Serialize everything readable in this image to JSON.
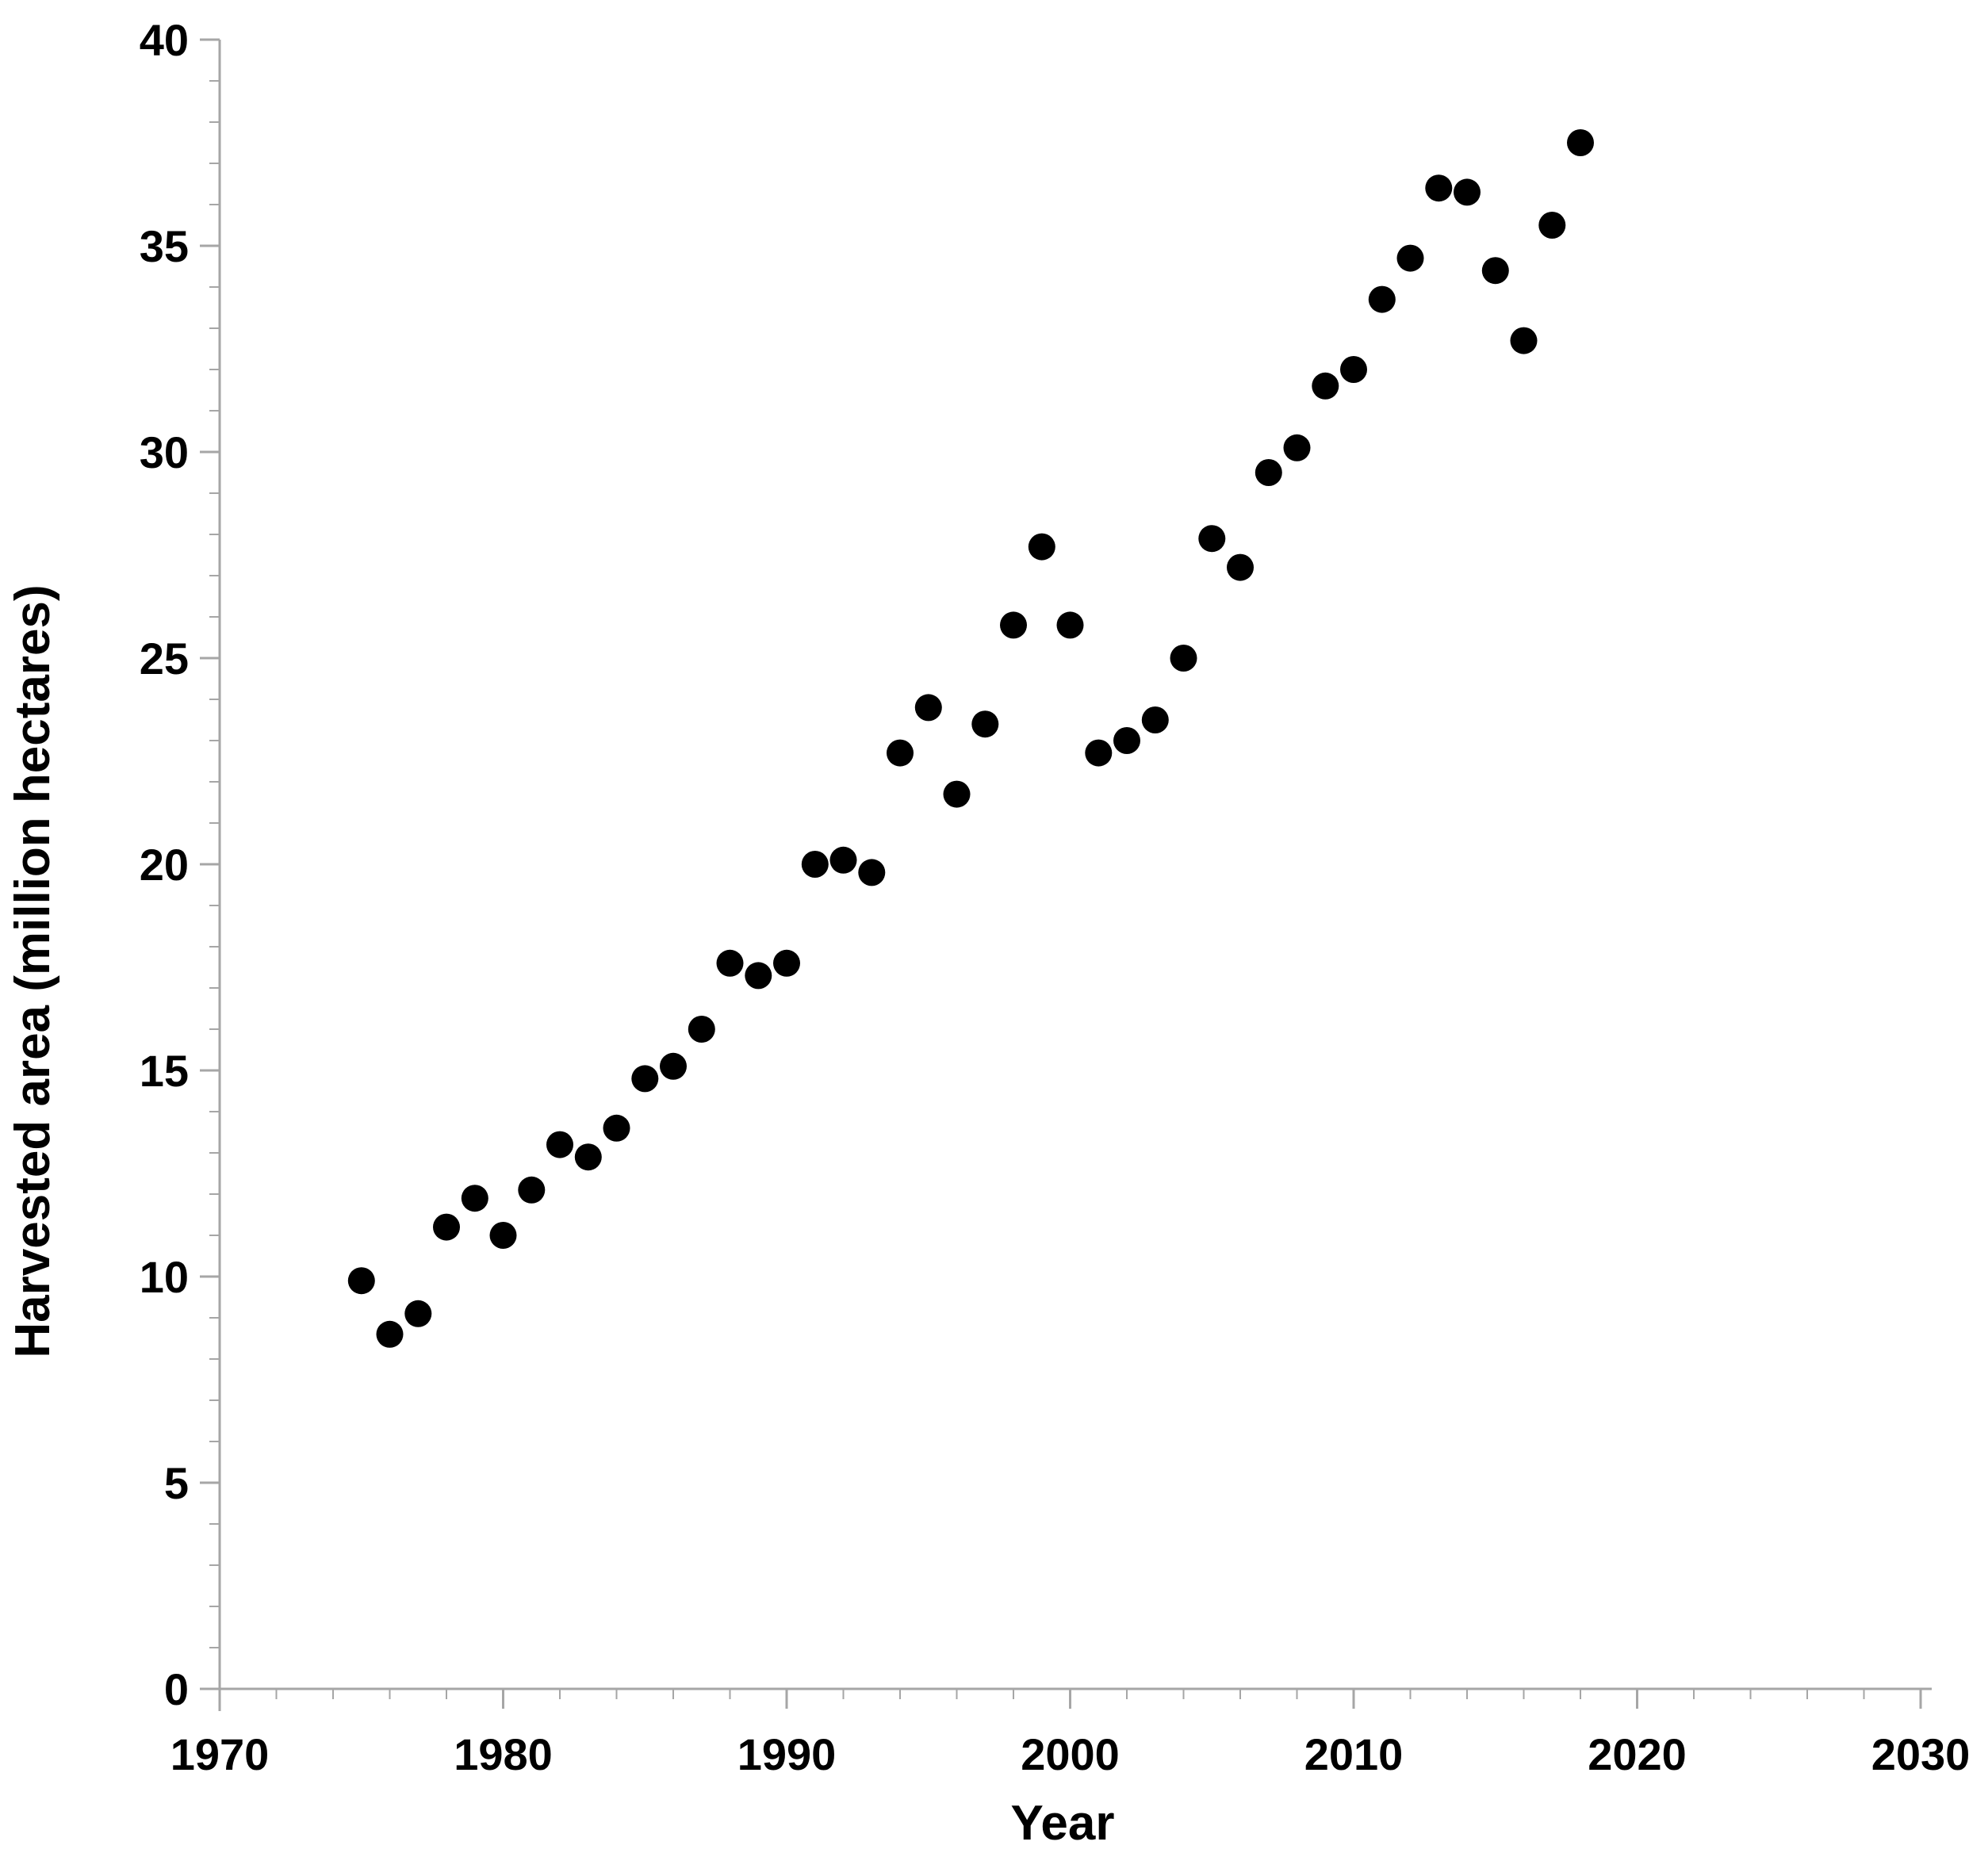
{
  "figure": {
    "aria_label": "Scatter plot of harvested area in million hectares by year, 1975 to 2018"
  },
  "chart_data": {
    "type": "scatter",
    "title": "",
    "xlabel": "Year",
    "ylabel": "Harvested area (million hectares)",
    "xlim": [
      1970,
      2030
    ],
    "ylim": [
      0,
      40
    ],
    "x_major_ticks": [
      1970,
      1980,
      1990,
      2000,
      2010,
      2020,
      2030
    ],
    "y_major_ticks": [
      0,
      5,
      10,
      15,
      20,
      25,
      30,
      35,
      40
    ],
    "x_minor_step": 2,
    "y_minor_step": 1,
    "grid": false,
    "legend": false,
    "marker": {
      "shape": "circle",
      "color": "#000000",
      "radius_px": 17
    },
    "axis_color": "#a6a6a6",
    "label_color": "#000000",
    "series": [
      {
        "name": "Harvested area",
        "x": [
          1975,
          1976,
          1977,
          1978,
          1979,
          1980,
          1981,
          1982,
          1983,
          1984,
          1985,
          1986,
          1987,
          1988,
          1989,
          1990,
          1991,
          1992,
          1993,
          1994,
          1995,
          1996,
          1997,
          1998,
          1999,
          2000,
          2001,
          2002,
          2003,
          2004,
          2005,
          2006,
          2007,
          2008,
          2009,
          2010,
          2011,
          2012,
          2013,
          2014,
          2015,
          2016,
          2017,
          2018
        ],
        "y": [
          9.9,
          8.6,
          9.1,
          11.2,
          11.9,
          11.0,
          12.1,
          13.2,
          12.9,
          13.6,
          14.8,
          15.1,
          16.0,
          17.6,
          17.3,
          17.6,
          20.0,
          20.1,
          19.8,
          22.7,
          23.8,
          21.7,
          23.4,
          25.8,
          27.7,
          25.8,
          22.7,
          23.0,
          23.5,
          25.0,
          27.9,
          27.2,
          29.5,
          30.1,
          31.6,
          32.0,
          33.7,
          34.7,
          36.4,
          36.3,
          34.4,
          32.7,
          35.5,
          37.5
        ]
      }
    ]
  }
}
